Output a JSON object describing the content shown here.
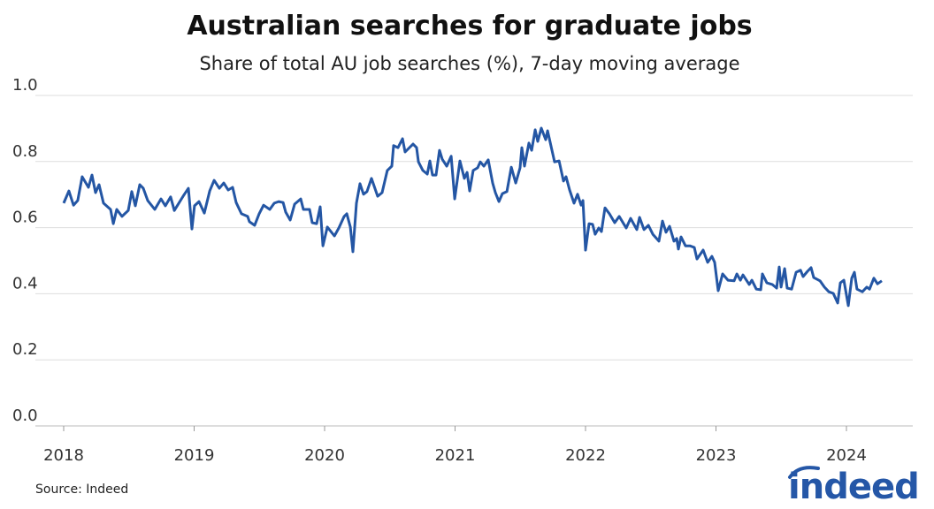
{
  "chart_data": {
    "type": "line",
    "title": "Australian searches for graduate jobs",
    "subtitle": "Share of total AU job searches (%), 7-day moving average",
    "xlabel": "",
    "ylabel": "",
    "xlim": [
      2017.78,
      2024.5
    ],
    "ylim": [
      0,
      1.0
    ],
    "grid": true,
    "x_ticks": [
      2018,
      2019,
      2020,
      2021,
      2022,
      2023,
      2024
    ],
    "x_tick_labels": [
      "2018",
      "2019",
      "2020",
      "2021",
      "2022",
      "2023",
      "2024"
    ],
    "y_ticks": [
      0,
      0.2,
      0.4,
      0.6,
      0.8,
      1.0
    ],
    "y_tick_labels": [
      "0.0",
      "0.2",
      "0.4",
      "0.6",
      "0.8",
      "1.0"
    ],
    "line_color": "#2456a4",
    "series": [
      {
        "points": [
          [
            2018.0,
            0.674
          ],
          [
            2018.04,
            0.711
          ],
          [
            2018.075,
            0.668
          ],
          [
            2018.108,
            0.682
          ],
          [
            2018.142,
            0.754
          ],
          [
            2018.19,
            0.722
          ],
          [
            2018.217,
            0.759
          ],
          [
            2018.244,
            0.706
          ],
          [
            2018.271,
            0.73
          ],
          [
            2018.305,
            0.674
          ],
          [
            2018.359,
            0.655
          ],
          [
            2018.38,
            0.612
          ],
          [
            2018.407,
            0.655
          ],
          [
            2018.447,
            0.634
          ],
          [
            2018.495,
            0.652
          ],
          [
            2018.522,
            0.709
          ],
          [
            2018.549,
            0.666
          ],
          [
            2018.583,
            0.73
          ],
          [
            2018.61,
            0.719
          ],
          [
            2018.644,
            0.682
          ],
          [
            2018.698,
            0.655
          ],
          [
            2018.746,
            0.687
          ],
          [
            2018.78,
            0.666
          ],
          [
            2018.82,
            0.693
          ],
          [
            2018.848,
            0.652
          ],
          [
            2018.915,
            0.695
          ],
          [
            2018.956,
            0.719
          ],
          [
            2018.983,
            0.596
          ],
          [
            2019.003,
            0.666
          ],
          [
            2019.037,
            0.679
          ],
          [
            2019.078,
            0.644
          ],
          [
            2019.119,
            0.711
          ],
          [
            2019.153,
            0.743
          ],
          [
            2019.193,
            0.719
          ],
          [
            2019.227,
            0.735
          ],
          [
            2019.261,
            0.714
          ],
          [
            2019.295,
            0.722
          ],
          [
            2019.322,
            0.676
          ],
          [
            2019.363,
            0.642
          ],
          [
            2019.41,
            0.634
          ],
          [
            2019.424,
            0.618
          ],
          [
            2019.464,
            0.607
          ],
          [
            2019.498,
            0.642
          ],
          [
            2019.532,
            0.668
          ],
          [
            2019.58,
            0.655
          ],
          [
            2019.614,
            0.674
          ],
          [
            2019.648,
            0.679
          ],
          [
            2019.682,
            0.676
          ],
          [
            2019.702,
            0.647
          ],
          [
            2019.736,
            0.623
          ],
          [
            2019.77,
            0.671
          ],
          [
            2019.817,
            0.687
          ],
          [
            2019.837,
            0.655
          ],
          [
            2019.885,
            0.655
          ],
          [
            2019.905,
            0.615
          ],
          [
            2019.939,
            0.612
          ],
          [
            2019.966,
            0.663
          ],
          [
            2019.987,
            0.545
          ],
          [
            2020.021,
            0.602
          ],
          [
            2020.075,
            0.575
          ],
          [
            2020.109,
            0.599
          ],
          [
            2020.15,
            0.634
          ],
          [
            2020.17,
            0.642
          ],
          [
            2020.197,
            0.602
          ],
          [
            2020.217,
            0.527
          ],
          [
            2020.244,
            0.674
          ],
          [
            2020.271,
            0.733
          ],
          [
            2020.298,
            0.701
          ],
          [
            2020.325,
            0.709
          ],
          [
            2020.359,
            0.749
          ],
          [
            2020.407,
            0.695
          ],
          [
            2020.441,
            0.706
          ],
          [
            2020.481,
            0.773
          ],
          [
            2020.515,
            0.786
          ],
          [
            2020.529,
            0.848
          ],
          [
            2020.563,
            0.842
          ],
          [
            2020.597,
            0.869
          ],
          [
            2020.617,
            0.829
          ],
          [
            2020.678,
            0.853
          ],
          [
            2020.705,
            0.842
          ],
          [
            2020.719,
            0.799
          ],
          [
            2020.753,
            0.773
          ],
          [
            2020.787,
            0.762
          ],
          [
            2020.807,
            0.802
          ],
          [
            2020.827,
            0.759
          ],
          [
            2020.854,
            0.759
          ],
          [
            2020.881,
            0.834
          ],
          [
            2020.902,
            0.807
          ],
          [
            2020.936,
            0.786
          ],
          [
            2020.97,
            0.816
          ],
          [
            2020.997,
            0.687
          ],
          [
            2021.037,
            0.802
          ],
          [
            2021.071,
            0.749
          ],
          [
            2021.092,
            0.767
          ],
          [
            2021.112,
            0.711
          ],
          [
            2021.139,
            0.773
          ],
          [
            2021.173,
            0.781
          ],
          [
            2021.193,
            0.799
          ],
          [
            2021.221,
            0.786
          ],
          [
            2021.254,
            0.805
          ],
          [
            2021.288,
            0.735
          ],
          [
            2021.309,
            0.706
          ],
          [
            2021.336,
            0.679
          ],
          [
            2021.363,
            0.703
          ],
          [
            2021.397,
            0.709
          ],
          [
            2021.431,
            0.783
          ],
          [
            2021.465,
            0.735
          ],
          [
            2021.498,
            0.781
          ],
          [
            2021.512,
            0.842
          ],
          [
            2021.532,
            0.786
          ],
          [
            2021.566,
            0.856
          ],
          [
            2021.587,
            0.834
          ],
          [
            2021.614,
            0.896
          ],
          [
            2021.634,
            0.861
          ],
          [
            2021.661,
            0.901
          ],
          [
            2021.695,
            0.866
          ],
          [
            2021.709,
            0.893
          ],
          [
            2021.763,
            0.799
          ],
          [
            2021.797,
            0.802
          ],
          [
            2021.831,
            0.741
          ],
          [
            2021.851,
            0.754
          ],
          [
            2021.878,
            0.714
          ],
          [
            2021.912,
            0.674
          ],
          [
            2021.939,
            0.701
          ],
          [
            2021.966,
            0.668
          ],
          [
            2021.98,
            0.682
          ],
          [
            2022.0,
            0.532
          ],
          [
            2022.027,
            0.612
          ],
          [
            2022.054,
            0.61
          ],
          [
            2022.074,
            0.58
          ],
          [
            2022.102,
            0.599
          ],
          [
            2022.122,
            0.588
          ],
          [
            2022.149,
            0.66
          ],
          [
            2022.183,
            0.642
          ],
          [
            2022.224,
            0.615
          ],
          [
            2022.258,
            0.634
          ],
          [
            2022.312,
            0.599
          ],
          [
            2022.346,
            0.628
          ],
          [
            2022.393,
            0.594
          ],
          [
            2022.414,
            0.631
          ],
          [
            2022.448,
            0.594
          ],
          [
            2022.482,
            0.607
          ],
          [
            2022.516,
            0.58
          ],
          [
            2022.563,
            0.559
          ],
          [
            2022.59,
            0.62
          ],
          [
            2022.617,
            0.586
          ],
          [
            2022.644,
            0.604
          ],
          [
            2022.678,
            0.559
          ],
          [
            2022.699,
            0.567
          ],
          [
            2022.712,
            0.535
          ],
          [
            2022.732,
            0.572
          ],
          [
            2022.766,
            0.545
          ],
          [
            2022.8,
            0.545
          ],
          [
            2022.834,
            0.54
          ],
          [
            2022.854,
            0.505
          ],
          [
            2022.902,
            0.532
          ],
          [
            2022.936,
            0.495
          ],
          [
            2022.969,
            0.513
          ],
          [
            2022.99,
            0.495
          ],
          [
            2023.017,
            0.409
          ],
          [
            2023.051,
            0.46
          ],
          [
            2023.092,
            0.441
          ],
          [
            2023.139,
            0.439
          ],
          [
            2023.16,
            0.46
          ],
          [
            2023.187,
            0.441
          ],
          [
            2023.207,
            0.457
          ],
          [
            2023.255,
            0.428
          ],
          [
            2023.275,
            0.441
          ],
          [
            2023.309,
            0.414
          ],
          [
            2023.343,
            0.412
          ],
          [
            2023.356,
            0.46
          ],
          [
            2023.39,
            0.433
          ],
          [
            2023.431,
            0.428
          ],
          [
            2023.465,
            0.417
          ],
          [
            2023.485,
            0.481
          ],
          [
            2023.499,
            0.42
          ],
          [
            2023.526,
            0.476
          ],
          [
            2023.546,
            0.417
          ],
          [
            2023.58,
            0.414
          ],
          [
            2023.614,
            0.465
          ],
          [
            2023.648,
            0.471
          ],
          [
            2023.668,
            0.452
          ],
          [
            2023.702,
            0.468
          ],
          [
            2023.729,
            0.479
          ],
          [
            2023.749,
            0.449
          ],
          [
            2023.797,
            0.439
          ],
          [
            2023.831,
            0.42
          ],
          [
            2023.865,
            0.406
          ],
          [
            2023.899,
            0.401
          ],
          [
            2023.933,
            0.372
          ],
          [
            2023.953,
            0.433
          ],
          [
            2023.98,
            0.441
          ],
          [
            2024.014,
            0.364
          ],
          [
            2024.041,
            0.447
          ],
          [
            2024.061,
            0.465
          ],
          [
            2024.081,
            0.414
          ],
          [
            2024.122,
            0.406
          ],
          [
            2024.156,
            0.42
          ],
          [
            2024.177,
            0.414
          ],
          [
            2024.21,
            0.447
          ],
          [
            2024.238,
            0.43
          ],
          [
            2024.271,
            0.439
          ]
        ]
      }
    ]
  },
  "source": "Source: Indeed",
  "logo_text": "indeed",
  "logo_color": "#2557a7"
}
